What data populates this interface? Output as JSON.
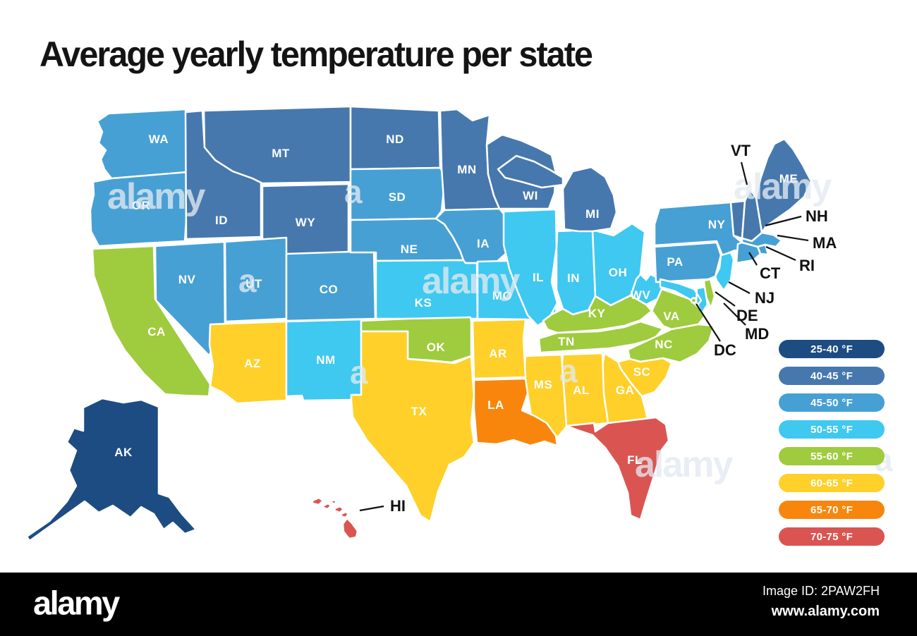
{
  "title": "Average yearly temperature per state",
  "legend": {
    "items": [
      {
        "range": "25-40",
        "label": "25-40 °F",
        "color": "#1d4c82"
      },
      {
        "range": "40-45",
        "label": "40-45 °F",
        "color": "#4678ae"
      },
      {
        "range": "45-50",
        "label": "45-50 °F",
        "color": "#47a0d4"
      },
      {
        "range": "50-55",
        "label": "50-55 °F",
        "color": "#3fc8f0"
      },
      {
        "range": "55-60",
        "label": "55-60 °F",
        "color": "#9fcb3e"
      },
      {
        "range": "60-65",
        "label": "60-65 °F",
        "color": "#fed029"
      },
      {
        "range": "65-70",
        "label": "65-70 °F",
        "color": "#f8860d"
      },
      {
        "range": "70-75",
        "label": "70-75 °F",
        "color": "#da5551"
      }
    ]
  },
  "map": {
    "states": [
      {
        "id": "WA",
        "label": "WA",
        "range": "45-50",
        "placement": "inside"
      },
      {
        "id": "OR",
        "label": "OR",
        "range": "45-50",
        "placement": "inside"
      },
      {
        "id": "CA",
        "label": "CA",
        "range": "55-60",
        "placement": "inside"
      },
      {
        "id": "NV",
        "label": "NV",
        "range": "45-50",
        "placement": "inside"
      },
      {
        "id": "ID",
        "label": "ID",
        "range": "40-45",
        "placement": "inside"
      },
      {
        "id": "MT",
        "label": "MT",
        "range": "40-45",
        "placement": "inside"
      },
      {
        "id": "WY",
        "label": "WY",
        "range": "40-45",
        "placement": "inside"
      },
      {
        "id": "UT",
        "label": "UT",
        "range": "45-50",
        "placement": "inside"
      },
      {
        "id": "CO",
        "label": "CO",
        "range": "45-50",
        "placement": "inside"
      },
      {
        "id": "AZ",
        "label": "AZ",
        "range": "60-65",
        "placement": "inside"
      },
      {
        "id": "NM",
        "label": "NM",
        "range": "50-55",
        "placement": "inside"
      },
      {
        "id": "ND",
        "label": "ND",
        "range": "40-45",
        "placement": "inside"
      },
      {
        "id": "SD",
        "label": "SD",
        "range": "45-50",
        "placement": "inside"
      },
      {
        "id": "NE",
        "label": "NE",
        "range": "45-50",
        "placement": "inside"
      },
      {
        "id": "KS",
        "label": "KS",
        "range": "50-55",
        "placement": "inside"
      },
      {
        "id": "OK",
        "label": "OK",
        "range": "55-60",
        "placement": "inside"
      },
      {
        "id": "TX",
        "label": "TX",
        "range": "60-65",
        "placement": "inside"
      },
      {
        "id": "MN",
        "label": "MN",
        "range": "40-45",
        "placement": "inside"
      },
      {
        "id": "IA",
        "label": "IA",
        "range": "45-50",
        "placement": "inside"
      },
      {
        "id": "MO",
        "label": "MO",
        "range": "50-55",
        "placement": "inside"
      },
      {
        "id": "WI",
        "label": "WI",
        "range": "40-45",
        "placement": "inside"
      },
      {
        "id": "IL",
        "label": "IL",
        "range": "50-55",
        "placement": "inside"
      },
      {
        "id": "IN",
        "label": "IN",
        "range": "50-55",
        "placement": "inside"
      },
      {
        "id": "OH",
        "label": "OH",
        "range": "50-55",
        "placement": "inside"
      },
      {
        "id": "MI",
        "label": "MI",
        "range": "40-45",
        "placement": "inside"
      },
      {
        "id": "KY",
        "label": "KY",
        "range": "55-60",
        "placement": "inside"
      },
      {
        "id": "TN",
        "label": "TN",
        "range": "55-60",
        "placement": "inside"
      },
      {
        "id": "WV",
        "label": "WV",
        "range": "50-55",
        "placement": "inside"
      },
      {
        "id": "VA",
        "label": "VA",
        "range": "55-60",
        "placement": "inside"
      },
      {
        "id": "NC",
        "label": "NC",
        "range": "55-60",
        "placement": "inside"
      },
      {
        "id": "SC",
        "label": "SC",
        "range": "60-65",
        "placement": "inside"
      },
      {
        "id": "GA",
        "label": "GA",
        "range": "60-65",
        "placement": "inside"
      },
      {
        "id": "AL",
        "label": "AL",
        "range": "60-65",
        "placement": "inside"
      },
      {
        "id": "MS",
        "label": "MS",
        "range": "60-65",
        "placement": "inside"
      },
      {
        "id": "AR",
        "label": "AR",
        "range": "60-65",
        "placement": "inside"
      },
      {
        "id": "LA",
        "label": "LA",
        "range": "65-70",
        "placement": "inside"
      },
      {
        "id": "FL",
        "label": "FL",
        "range": "70-75",
        "placement": "inside"
      },
      {
        "id": "NY",
        "label": "NY",
        "range": "45-50",
        "placement": "inside"
      },
      {
        "id": "PA",
        "label": "PA",
        "range": "45-50",
        "placement": "inside"
      },
      {
        "id": "ME",
        "label": "ME",
        "range": "40-45",
        "placement": "inside"
      },
      {
        "id": "AK",
        "label": "AK",
        "range": "25-40",
        "placement": "inside"
      },
      {
        "id": "VT",
        "label": "VT",
        "range": "40-45",
        "placement": "callout"
      },
      {
        "id": "NH",
        "label": "NH",
        "range": "40-45",
        "placement": "callout"
      },
      {
        "id": "MA",
        "label": "MA",
        "range": "45-50",
        "placement": "callout"
      },
      {
        "id": "RI",
        "label": "RI",
        "range": "45-50",
        "placement": "callout"
      },
      {
        "id": "CT",
        "label": "CT",
        "range": "45-50",
        "placement": "callout"
      },
      {
        "id": "NJ",
        "label": "NJ",
        "range": "50-55",
        "placement": "callout"
      },
      {
        "id": "DE",
        "label": "DE",
        "range": "55-60",
        "placement": "callout"
      },
      {
        "id": "MD",
        "label": "MD",
        "range": "50-55",
        "placement": "callout"
      },
      {
        "id": "DC",
        "label": "DC",
        "range": "55-60",
        "placement": "callout"
      },
      {
        "id": "HI",
        "label": "HI",
        "range": "70-75",
        "placement": "callout"
      }
    ]
  },
  "watermark": {
    "text": "alamy",
    "short_text": "a"
  },
  "footer": {
    "logo": "alamy",
    "image_id": "Image ID: 2PAW2FH",
    "website": "www.alamy.com"
  }
}
